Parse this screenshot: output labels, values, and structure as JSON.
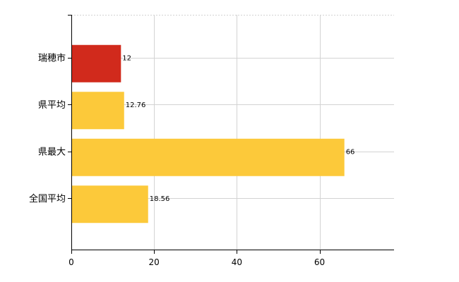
{
  "chart_data": {
    "type": "bar",
    "orientation": "horizontal",
    "categories": [
      "瑞穂市",
      "県平均",
      "県最大",
      "全国平均"
    ],
    "values": [
      12,
      12.76,
      66,
      18.56
    ],
    "data_labels": [
      "12",
      "12.76",
      "66",
      "18.56"
    ],
    "bar_colors": [
      "#d12a1c",
      "#fcc93a",
      "#fcc93a",
      "#fcc93a"
    ],
    "xlim": [
      0,
      78
    ],
    "xticks": [
      0,
      20,
      40,
      60
    ],
    "title": "",
    "xlabel": "",
    "ylabel": "",
    "grid": true,
    "legend": "none"
  },
  "colors": {
    "highlight": "#d12a1c",
    "default": "#fcc93a",
    "grid": "#d3d3d3",
    "axis": "#000000"
  }
}
